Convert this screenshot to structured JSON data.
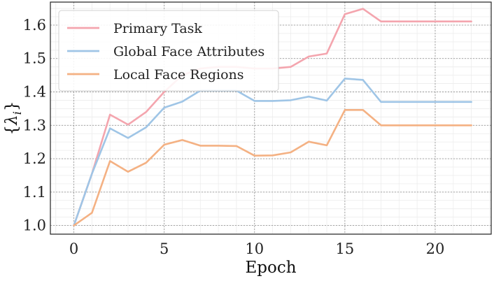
{
  "chart_data": {
    "type": "line",
    "title": "",
    "xlabel": "Epoch",
    "ylabel": "{λ_i}",
    "xlim": [
      -1.3,
      23.1
    ],
    "ylim": [
      0.974,
      1.669
    ],
    "xticks": [
      0,
      5,
      10,
      15,
      20
    ],
    "yticks": [
      1.0,
      1.1,
      1.2,
      1.3,
      1.4,
      1.5,
      1.6
    ],
    "ytick_labels": [
      "1.0",
      "1.1",
      "1.2",
      "1.3",
      "1.4",
      "1.5",
      "1.6"
    ],
    "grid": true,
    "minor_grid": true,
    "legend_position": "top-left",
    "x": [
      0,
      1,
      2,
      3,
      4,
      5,
      6,
      7,
      8,
      9,
      10,
      11,
      12,
      13,
      14,
      15,
      16,
      17,
      18,
      19,
      20,
      21,
      22
    ],
    "series": [
      {
        "name": "Primary Task",
        "color": "#f4a5ae",
        "values": [
          1.0,
          1.155,
          1.332,
          1.302,
          1.34,
          1.4,
          1.45,
          1.47,
          1.475,
          1.475,
          1.47,
          1.47,
          1.475,
          1.506,
          1.515,
          1.633,
          1.649,
          1.611,
          1.611,
          1.611,
          1.611,
          1.611,
          1.611
        ]
      },
      {
        "name": "Global Face Attributes",
        "color": "#9fc5e6",
        "values": [
          1.0,
          1.155,
          1.291,
          1.262,
          1.294,
          1.353,
          1.371,
          1.404,
          1.404,
          1.404,
          1.373,
          1.373,
          1.375,
          1.386,
          1.374,
          1.44,
          1.436,
          1.37,
          1.37,
          1.37,
          1.37,
          1.37,
          1.37
        ]
      },
      {
        "name": "Local Face Regions",
        "color": "#f4b183",
        "values": [
          1.0,
          1.038,
          1.193,
          1.161,
          1.188,
          1.242,
          1.256,
          1.239,
          1.239,
          1.238,
          1.209,
          1.21,
          1.219,
          1.251,
          1.24,
          1.346,
          1.346,
          1.3,
          1.3,
          1.3,
          1.3,
          1.3,
          1.3
        ]
      }
    ]
  }
}
